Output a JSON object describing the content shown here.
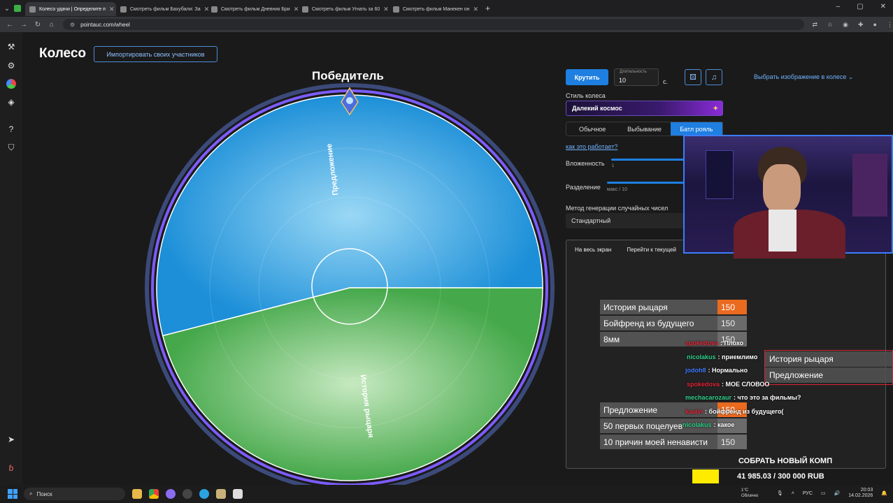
{
  "browser": {
    "tabs": [
      {
        "title": "Колесо удачи | Определите п",
        "active": true
      },
      {
        "title": "Смотреть фильм Бахубали: За"
      },
      {
        "title": "Смотреть фильм Дневник Бри"
      },
      {
        "title": "Смотреть фильм Угнать за 60"
      },
      {
        "title": "Смотреть фильм Манекен он"
      }
    ],
    "url": "pointauc.com/wheel"
  },
  "page": {
    "title": "Колесо",
    "import_button": "Импортировать своих участников",
    "winner_label": "Победитель"
  },
  "wheel": {
    "segments": [
      {
        "label": "Предложение",
        "color": "#4aaee6",
        "share": 0.54
      },
      {
        "label": "История рыцаря",
        "color": "#67c163",
        "share": 0.46
      }
    ]
  },
  "controls": {
    "spin_button": "Крутить",
    "duration_label": "Длительность",
    "duration_value": "10",
    "duration_unit": "с.",
    "select_image": "Выбрать изображение в колесе",
    "style_label": "Стиль колеса",
    "style_value": "Далекий космос",
    "modes": [
      "Обычное",
      "Выбывание",
      "Батл рояль"
    ],
    "active_mode": "Батл рояль",
    "how_link": "как это работает?",
    "nesting_label": "Вложенность",
    "nesting_min": "1",
    "split_label": "Разделение",
    "split_hint": "макс / 10",
    "rng_label": "Метод генерации случайных чисел",
    "rng_value": "Стандартный"
  },
  "overlay": {
    "fullscreen": "На весь экран",
    "goto_current": "Перейти к текущей",
    "lots_top": [
      {
        "name": "История рыцаря",
        "value": "150",
        "hot": true
      },
      {
        "name": "Бойфренд из будущего",
        "value": "150"
      },
      {
        "name": "8мм",
        "value": "150"
      }
    ],
    "lots_bottom": [
      {
        "name": "Предложение",
        "value": "150",
        "hot": true
      },
      {
        "name": "50 первых поцелуев",
        "value": ""
      },
      {
        "name": "10 причин моей ненависти",
        "value": "150"
      }
    ],
    "versus": [
      "История рыцаря",
      "Предложение"
    ]
  },
  "chat": [
    {
      "user": "spokedova",
      "text": ": Плохо",
      "color": "#e0263a"
    },
    {
      "user": "nicolakus",
      "text": ": приемлимо",
      "color": "#2fd08a"
    },
    {
      "user": "jodoh8",
      "text": ": Нормально",
      "color": "#3f7dff"
    },
    {
      "user": "spokedova",
      "text": ": МОЕ СЛОВОО",
      "color": "#e0263a"
    },
    {
      "user": "mechacarozaur",
      "text": ": что это за фильмы?",
      "color": "#2fd08a"
    },
    {
      "user": "kaaivi",
      "text": ": бойфренд из будущего(",
      "color": "#e0263a"
    },
    {
      "user": "nicolakus",
      "text": ": какое",
      "color": "#2fd08a"
    }
  ],
  "goal": {
    "title": "СОБРАТЬ НОВЫЙ КОМП",
    "progress": "41 985.03 / 300 000 RUB",
    "fraction": 0.14
  },
  "taskbar": {
    "search": "Поиск",
    "weather_temp": "1°C",
    "weather_desc": "Облачно",
    "lang": "РУС",
    "time": "20:03",
    "date": "14.02.2026"
  }
}
